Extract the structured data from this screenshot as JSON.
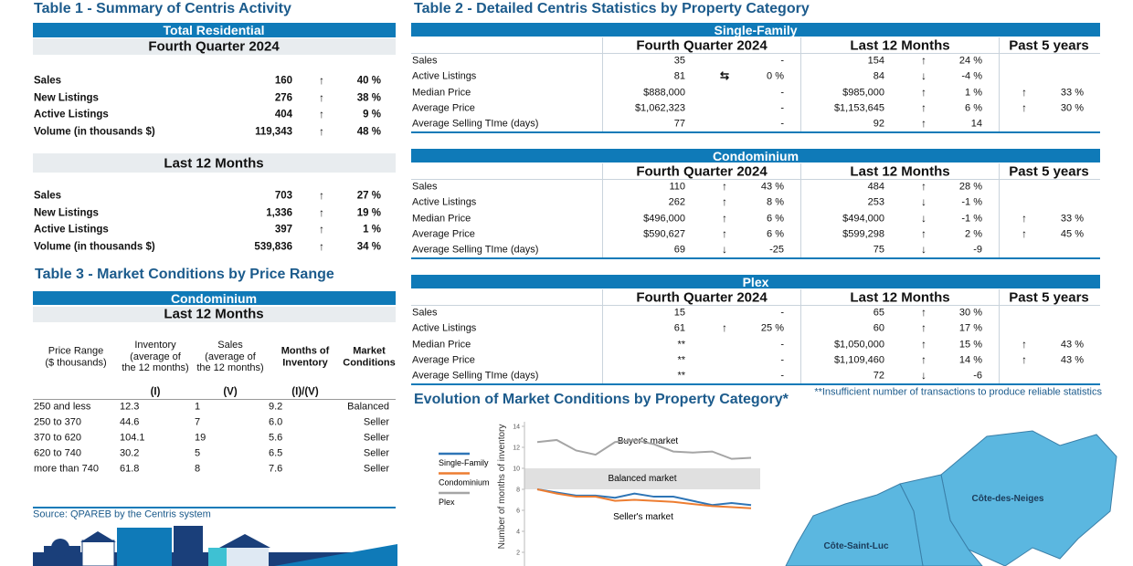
{
  "table1": {
    "title": "Table 1 - Summary of Centris Activity",
    "band": "Total Residential",
    "sections": [
      {
        "title": "Fourth Quarter 2024",
        "rows": [
          [
            "Sales",
            "160",
            "↑",
            "40 %"
          ],
          [
            "New Listings",
            "276",
            "↑",
            "38 %"
          ],
          [
            "Active Listings",
            "404",
            "↑",
            "9 %"
          ],
          [
            "Volume (in thousands $)",
            "119,343",
            "↑",
            "48 %"
          ]
        ]
      },
      {
        "title": "Last 12 Months",
        "rows": [
          [
            "Sales",
            "703",
            "↑",
            "27 %"
          ],
          [
            "New Listings",
            "1,336",
            "↑",
            "19 %"
          ],
          [
            "Active Listings",
            "397",
            "↑",
            "1 %"
          ],
          [
            "Volume (in thousands $)",
            "539,836",
            "↑",
            "34 %"
          ]
        ]
      }
    ]
  },
  "table2": {
    "title": "Table 2 - Detailed Centris Statistics by Property Category",
    "columns": [
      "Fourth Quarter 2024",
      "Last 12 Months",
      "Past 5 years"
    ],
    "blocks": [
      {
        "name": "Single-Family",
        "rows": [
          [
            "Sales",
            "35",
            null,
            "-",
            "154",
            "↑",
            "24 %",
            null,
            null
          ],
          [
            "Active Listings",
            "81",
            "⇆",
            "0 %",
            "84",
            "↓",
            "-4 %",
            null,
            null
          ],
          [
            "Median Price",
            "$888,000",
            null,
            "-",
            "$985,000",
            "↑",
            "1 %",
            "↑",
            "33 %"
          ],
          [
            "Average Price",
            "$1,062,323",
            null,
            "-",
            "$1,153,645",
            "↑",
            "6 %",
            "↑",
            "30 %"
          ],
          [
            "Average Selling TIme (days)",
            "77",
            null,
            "-",
            "92",
            "↑",
            "14",
            null,
            null
          ]
        ]
      },
      {
        "name": "Condominium",
        "rows": [
          [
            "Sales",
            "110",
            "↑",
            "43 %",
            "484",
            "↑",
            "28 %",
            null,
            null
          ],
          [
            "Active Listings",
            "262",
            "↑",
            "8 %",
            "253",
            "↓",
            "-1 %",
            null,
            null
          ],
          [
            "Median Price",
            "$496,000",
            "↑",
            "6 %",
            "$494,000",
            "↓",
            "-1 %",
            "↑",
            "33 %"
          ],
          [
            "Average Price",
            "$590,627",
            "↑",
            "6 %",
            "$599,298",
            "↑",
            "2 %",
            "↑",
            "45 %"
          ],
          [
            "Average Selling TIme (days)",
            "69",
            "↓",
            "-25",
            "75",
            "↓",
            "-9",
            null,
            null
          ]
        ]
      },
      {
        "name": "Plex",
        "rows": [
          [
            "Sales",
            "15",
            null,
            "-",
            "65",
            "↑",
            "30 %",
            null,
            null
          ],
          [
            "Active Listings",
            "61",
            "↑",
            "25 %",
            "60",
            "↑",
            "17 %",
            null,
            null
          ],
          [
            "Median Price",
            "**",
            null,
            "-",
            "$1,050,000",
            "↑",
            "15 %",
            "↑",
            "43 %"
          ],
          [
            "Average Price",
            "**",
            null,
            "-",
            "$1,109,460",
            "↑",
            "14 %",
            "↑",
            "43 %"
          ],
          [
            "Average Selling TIme (days)",
            "**",
            null,
            "-",
            "72",
            "↓",
            "-6",
            null,
            null
          ]
        ]
      }
    ],
    "footnote": "**Insufficient number of transactions to produce reliable statistics"
  },
  "table3": {
    "title": "Table 3 - Market Conditions by Price Range",
    "band": "Condominium",
    "subtitle": "Last 12 Months",
    "headers": [
      "Price Range\n($ thousands)",
      "Inventory\n(average of\nthe 12 months)",
      "Sales\n(average of\nthe 12 months)",
      "Months of\nInventory",
      "Market\nConditions"
    ],
    "subheaders": [
      null,
      "(I)",
      "(V)",
      "(I)/(V)",
      null
    ],
    "rows": [
      [
        "250 and less",
        "12.3",
        "1",
        "9.2",
        "Balanced"
      ],
      [
        "250 to 370",
        "44.6",
        "7",
        "6.0",
        "Seller"
      ],
      [
        "370 to 620",
        "104.1",
        "19",
        "5.6",
        "Seller"
      ],
      [
        "620 to 740",
        "30.2",
        "5",
        "6.5",
        "Seller"
      ],
      [
        "more than 740",
        "61.8",
        "8",
        "7.6",
        "Seller"
      ]
    ],
    "source": "Source: QPAREB by the Centris system"
  },
  "chart_data": {
    "type": "line",
    "title": "Evolution of Market Conditions by Property Category*",
    "y_label": "Number of months of inventory",
    "categories": [
      null,
      null,
      null,
      null,
      null,
      null,
      null,
      null,
      null,
      null,
      null,
      null
    ],
    "series": [
      {
        "name": "Single-Family",
        "color": "#2e75b6",
        "values": [
          8.0,
          7.7,
          7.4,
          7.4,
          7.2,
          7.6,
          7.3,
          7.3,
          6.9,
          6.5,
          6.7,
          6.5
        ]
      },
      {
        "name": "Condominium",
        "color": "#ed7d31",
        "values": [
          8.0,
          7.6,
          7.3,
          7.3,
          6.9,
          7.0,
          6.9,
          6.8,
          6.6,
          6.4,
          6.3,
          6.2
        ]
      },
      {
        "name": "Plex",
        "color": "#a5a5a5",
        "values": [
          12.5,
          12.7,
          11.7,
          11.3,
          12.5,
          12.7,
          12.3,
          11.6,
          11.5,
          11.6,
          10.9,
          11.0
        ]
      }
    ],
    "ylim": [
      2,
      14
    ],
    "yticks": [
      2,
      4,
      6,
      8,
      10,
      12,
      14
    ],
    "band": {
      "from": 8,
      "to": 10,
      "label": "Balanced market",
      "color": "#e0e0e0"
    },
    "annotations": [
      "Buyer's market",
      "Seller's market"
    ]
  },
  "map": {
    "labels": [
      "Côte-des-Neiges",
      "Côte-Saint-Luc"
    ]
  }
}
